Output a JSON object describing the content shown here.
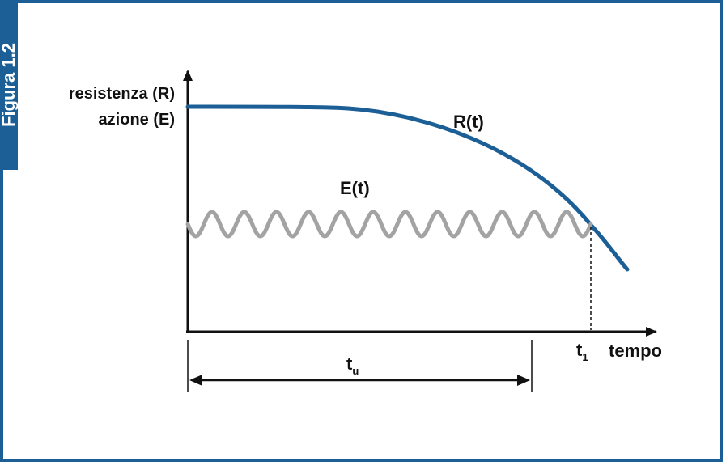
{
  "figure_label": "Figura 1.2",
  "y_axis_label_line1": "resistenza (R)",
  "y_axis_label_line2": "azione (E)",
  "x_axis_label": "tempo",
  "curve_resistance_label": "R(t)",
  "curve_action_label": "E(t)",
  "t1_label_main": "t",
  "t1_label_sub": "1",
  "tu_label_main": "t",
  "tu_label_sub": "u",
  "colors": {
    "frame": "#1c5f96",
    "resistance_curve": "#1c5f96",
    "action_curve": "#a3a3a3",
    "axis": "#111111"
  }
}
